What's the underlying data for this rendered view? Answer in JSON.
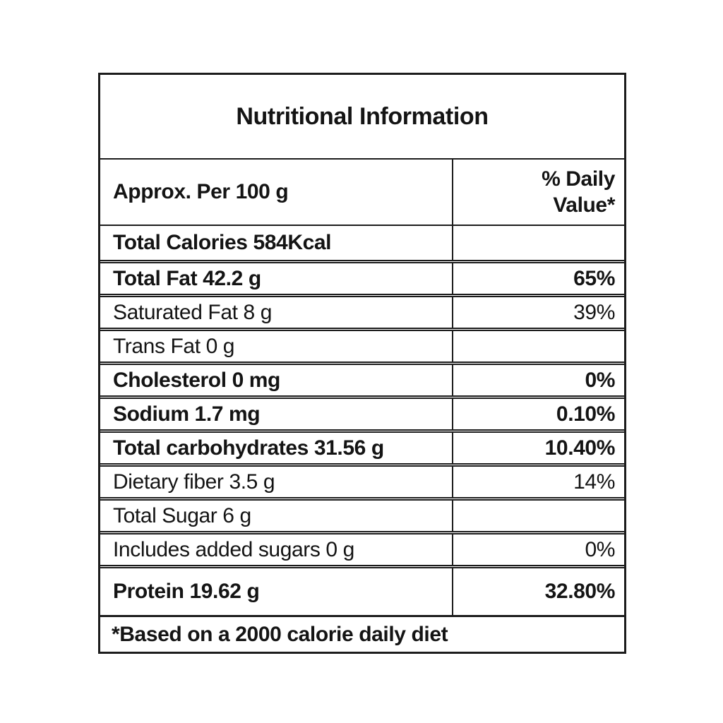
{
  "table": {
    "title": "Nutritional Information",
    "header": {
      "label_column": "Approx. Per 100 g",
      "value_column": "% Daily Value*"
    },
    "rows": [
      {
        "label": "Total Calories 584Kcal",
        "value": "",
        "bold": true,
        "tall": false
      },
      {
        "label": "Total Fat 42.2 g",
        "value": "65%",
        "bold": true,
        "tall": false
      },
      {
        "label": "Saturated Fat 8 g",
        "value": "39%",
        "bold": false,
        "tall": false
      },
      {
        "label": "Trans Fat 0 g",
        "value": "",
        "bold": false,
        "tall": false
      },
      {
        "label": "Cholesterol 0 mg",
        "value": "0%",
        "bold": true,
        "tall": false
      },
      {
        "label": "Sodium 1.7 mg",
        "value": "0.10%",
        "bold": true,
        "tall": false
      },
      {
        "label": "Total carbohydrates 31.56 g",
        "value": "10.40%",
        "bold": true,
        "tall": false
      },
      {
        "label": "Dietary fiber 3.5 g",
        "value": "14%",
        "bold": false,
        "tall": false
      },
      {
        "label": "Total Sugar 6 g",
        "value": "",
        "bold": false,
        "tall": false
      },
      {
        "label": "Includes added sugars 0 g",
        "value": "0%",
        "bold": false,
        "tall": false
      },
      {
        "label": "Protein 19.62 g",
        "value": "32.80%",
        "bold": true,
        "tall": true
      }
    ],
    "footnote": "*Based on a 2000 calorie daily diet",
    "colors": {
      "border": "#1c1c1c",
      "text": "#141414",
      "background": "#ffffff"
    }
  }
}
